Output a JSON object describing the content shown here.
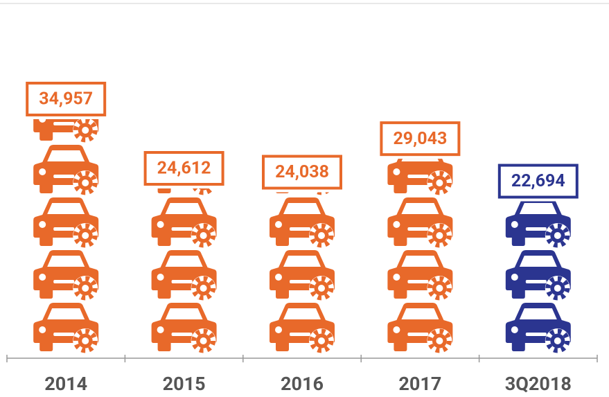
{
  "chart_data": {
    "type": "pictograph",
    "categories": [
      "2014",
      "2015",
      "2016",
      "2017",
      "3Q2018"
    ],
    "values": [
      34957,
      24612,
      24038,
      29043,
      22694
    ],
    "value_labels": [
      "34,957",
      "24,612",
      "24,038",
      "29,043",
      "22,694"
    ],
    "colors": [
      "#e8692a",
      "#e8692a",
      "#e8692a",
      "#e8692a",
      "#2b3590"
    ]
  }
}
